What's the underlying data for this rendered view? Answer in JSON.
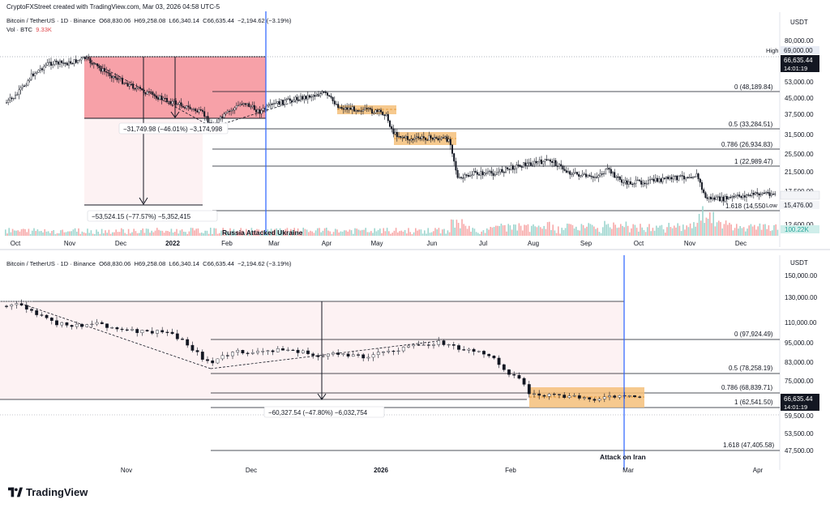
{
  "watermark": "CryptoFXStreet created with TradingView.com, Mar 03, 2026 04:58 UTC-5",
  "brand": "TradingView",
  "top": {
    "header": {
      "symbol": "Bitcoin / TetherUS · 1D · Binance",
      "open": "O68,830.06",
      "high": "H69,258.08",
      "low": "L66,340.14",
      "close": "C66,635.44",
      "change": "−2,194.62 (−3.19%)",
      "vol_label": "Vol · BTC",
      "vol_value": "9.33K"
    },
    "currency": "USDT",
    "y_ticks": [
      "80,000.00",
      "61,500.00",
      "53,000.00",
      "45,000.00",
      "37,500.00",
      "31,500.00",
      "25,500.00",
      "21,500.00",
      "17,500.00",
      "12,600.00"
    ],
    "x_ticks": [
      "Oct",
      "Nov",
      "Dec",
      "2022",
      "Feb",
      "Mar",
      "Apr",
      "May",
      "Jun",
      "Jul",
      "Aug",
      "Sep",
      "Oct",
      "Nov",
      "Dec"
    ],
    "tags": {
      "high_label": "High",
      "high_value": "69,000.00",
      "price": "66,635.44",
      "timer": "14:01:19",
      "low_value": "15,476.00",
      "low_label": "Low",
      "volume": "100.22K"
    },
    "fib_levels": [
      "0 (48,189.84)",
      "0.5 (33,284.51)",
      "0.786 (26,934.83)",
      "1 (22,989.47)",
      "1.618 (14,550"
    ],
    "measure_1": "−31,749.98 (−46.01%) −3,174,998",
    "measure_2": "−53,524.15 (−77.57%) −5,352,415",
    "event": "Russia Attacked Ukraine"
  },
  "bottom": {
    "header": {
      "symbol": "Bitcoin / TetherUS · 1D · Binance",
      "open": "O68,830.06",
      "high": "H69,258.08",
      "low": "L66,340.14",
      "close": "C66,635.44",
      "change": "−2,194.62 (−3.19%)"
    },
    "currency": "USDT",
    "y_ticks": [
      "150,000.00",
      "130,000.00",
      "110,000.00",
      "95,000.00",
      "83,000.00",
      "75,000.00",
      "59,500.00",
      "53,500.00",
      "47,500.00"
    ],
    "x_ticks": [
      "Nov",
      "Dec",
      "2026",
      "Feb",
      "Mar",
      "Apr"
    ],
    "tags": {
      "price": "66,635.44",
      "timer": "14:01:19"
    },
    "fib_levels": [
      "0 (97,924.49)",
      "0.5 (78,258.19)",
      "0.786 (68,839.71)",
      "1 (62,541.50)",
      "1.618 (47,405.58)"
    ],
    "measure": "−60,327.54 (−47.80%) −6,032,754",
    "event": "Attack on Iran"
  },
  "colors": {
    "up": "#26a69a",
    "down": "#131722",
    "event_line": "#2962ff",
    "rect_fill": "#f7a1a8",
    "rect_light": "#fdf2f3",
    "consolidation": "#f5c07a",
    "vol_red": "#f7a9a9",
    "vol_green": "#9ed6cf"
  },
  "chart_data": [
    {
      "type": "candlestick",
      "title": "Bitcoin / TetherUS · 1D · Binance",
      "period": "Oct 2021 – Dec 2022",
      "x": [
        "2021-10",
        "2021-11",
        "2021-12",
        "2022-01",
        "2022-02",
        "2022-03",
        "2022-04",
        "2022-05",
        "2022-06",
        "2022-07",
        "2022-08",
        "2022-09",
        "2022-10",
        "2022-11",
        "2022-12"
      ],
      "close_approx": [
        61000,
        57000,
        46000,
        38000,
        43000,
        45500,
        38500,
        31800,
        19900,
        23300,
        20000,
        19400,
        20500,
        17200,
        16500
      ],
      "fib_retracement": [
        {
          "level": 0,
          "price": 48189.84
        },
        {
          "level": 0.5,
          "price": 33284.51
        },
        {
          "level": 0.786,
          "price": 26934.83
        },
        {
          "level": 1,
          "price": 22989.47
        },
        {
          "level": 1.618,
          "price": 14550
        }
      ],
      "high": 69000,
      "low": 15476,
      "annotation": "Russia Attacked Ukraine"
    },
    {
      "type": "candlestick",
      "title": "Bitcoin / TetherUS · 1D · Binance",
      "period": "Oct 2025 – Mar 2026",
      "x": [
        "2025-10",
        "2025-11",
        "2025-12",
        "2026-01",
        "2026-02",
        "2026-03"
      ],
      "close_approx": [
        112000,
        91000,
        88000,
        89000,
        67000,
        66635.44
      ],
      "fib_retracement": [
        {
          "level": 0,
          "price": 97924.49
        },
        {
          "level": 0.5,
          "price": 78258.19
        },
        {
          "level": 0.786,
          "price": 68839.71
        },
        {
          "level": 1,
          "price": 62541.5
        },
        {
          "level": 1.618,
          "price": 47405.58
        }
      ],
      "last": 66635.44,
      "annotation": "Attack on Iran"
    }
  ]
}
